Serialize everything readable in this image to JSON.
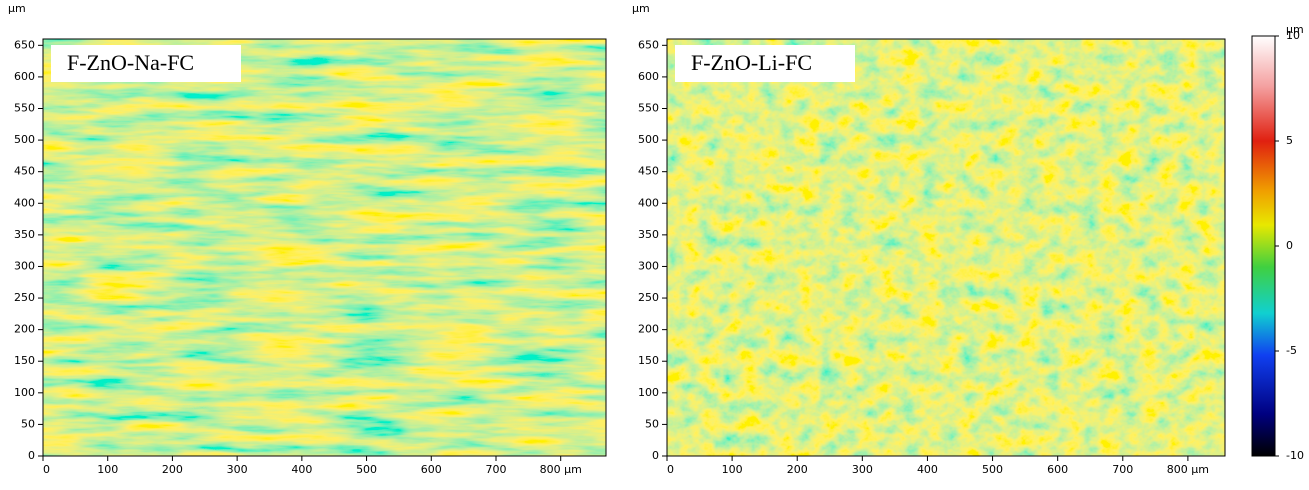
{
  "chart_data": [
    {
      "type": "heatmap",
      "annotation": "F-ZnO-Na-FC",
      "y_unit": "µm",
      "xlim": [
        0,
        870
      ],
      "ylim": [
        0,
        660
      ],
      "xticks": [
        0,
        100,
        200,
        300,
        400,
        500,
        600,
        700,
        {
          "value": 800,
          "label": "800 µm"
        }
      ],
      "yticks": [
        0,
        50,
        100,
        150,
        200,
        250,
        300,
        350,
        400,
        450,
        500,
        550,
        600,
        650
      ]
    },
    {
      "type": "heatmap",
      "annotation": "F-ZnO-Li-FC",
      "y_unit": "µm",
      "xlim": [
        0,
        857
      ],
      "ylim": [
        0,
        660
      ],
      "xticks": [
        0,
        100,
        200,
        300,
        400,
        500,
        600,
        700,
        {
          "value": 800,
          "label": "800 µm"
        }
      ],
      "yticks": [
        0,
        50,
        100,
        150,
        200,
        250,
        300,
        350,
        400,
        450,
        500,
        550,
        600,
        650
      ]
    }
  ],
  "colorbar": {
    "label": "µm",
    "lim": [
      -10,
      10
    ],
    "ticks": [
      10,
      5,
      0,
      -5,
      -10
    ]
  }
}
